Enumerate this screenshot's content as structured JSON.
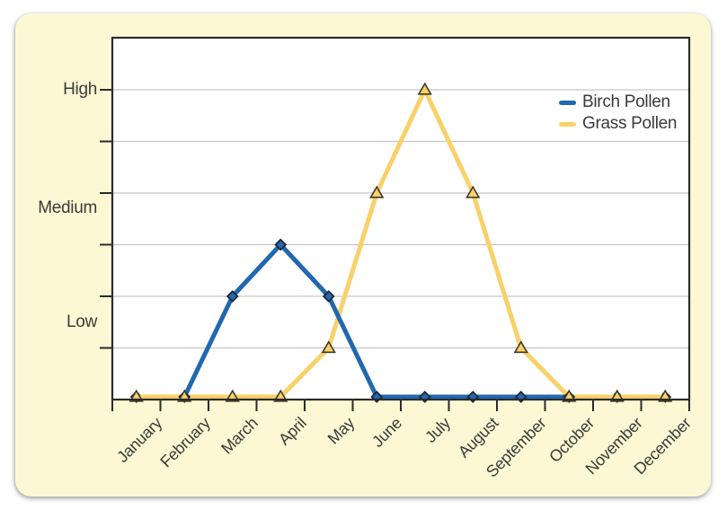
{
  "figure": {
    "page_background": "#ffffff",
    "card_background": "#fcf8d3",
    "plot_background": "#ffffff",
    "axis_color": "#2b2b2b",
    "gridline_color": "#c6c6c6",
    "text_color": "#3a3a3a"
  },
  "chart_data": {
    "type": "line",
    "title": "",
    "xlabel": "",
    "ylabel": "",
    "categories": [
      "January",
      "February",
      "March",
      "April",
      "May",
      "June",
      "July",
      "August",
      "September",
      "October",
      "November",
      "December"
    ],
    "series": [
      {
        "name": "Birch Pollen",
        "color": "#2268b0",
        "marker": "diamond",
        "marker_outline": "#1b222e",
        "values": [
          0,
          0,
          2,
          3,
          2,
          0,
          0,
          0,
          0,
          0,
          0,
          0
        ]
      },
      {
        "name": "Grass Pollen",
        "color": "#f9d168",
        "marker": "triangle",
        "marker_outline": "#3f3c2c",
        "values": [
          0,
          0,
          0,
          0,
          1,
          4,
          6,
          4,
          1,
          0,
          0,
          0
        ]
      }
    ],
    "ytick_labels": [
      {
        "label": "High",
        "v": 6
      },
      {
        "label": "Medium",
        "v": 3.7
      },
      {
        "label": "Low",
        "v": 1.5
      }
    ],
    "ylim": [
      0,
      7
    ],
    "gridlines": [
      1,
      2,
      3,
      4,
      5,
      6
    ],
    "grid": true,
    "legend_position": "top-right"
  }
}
